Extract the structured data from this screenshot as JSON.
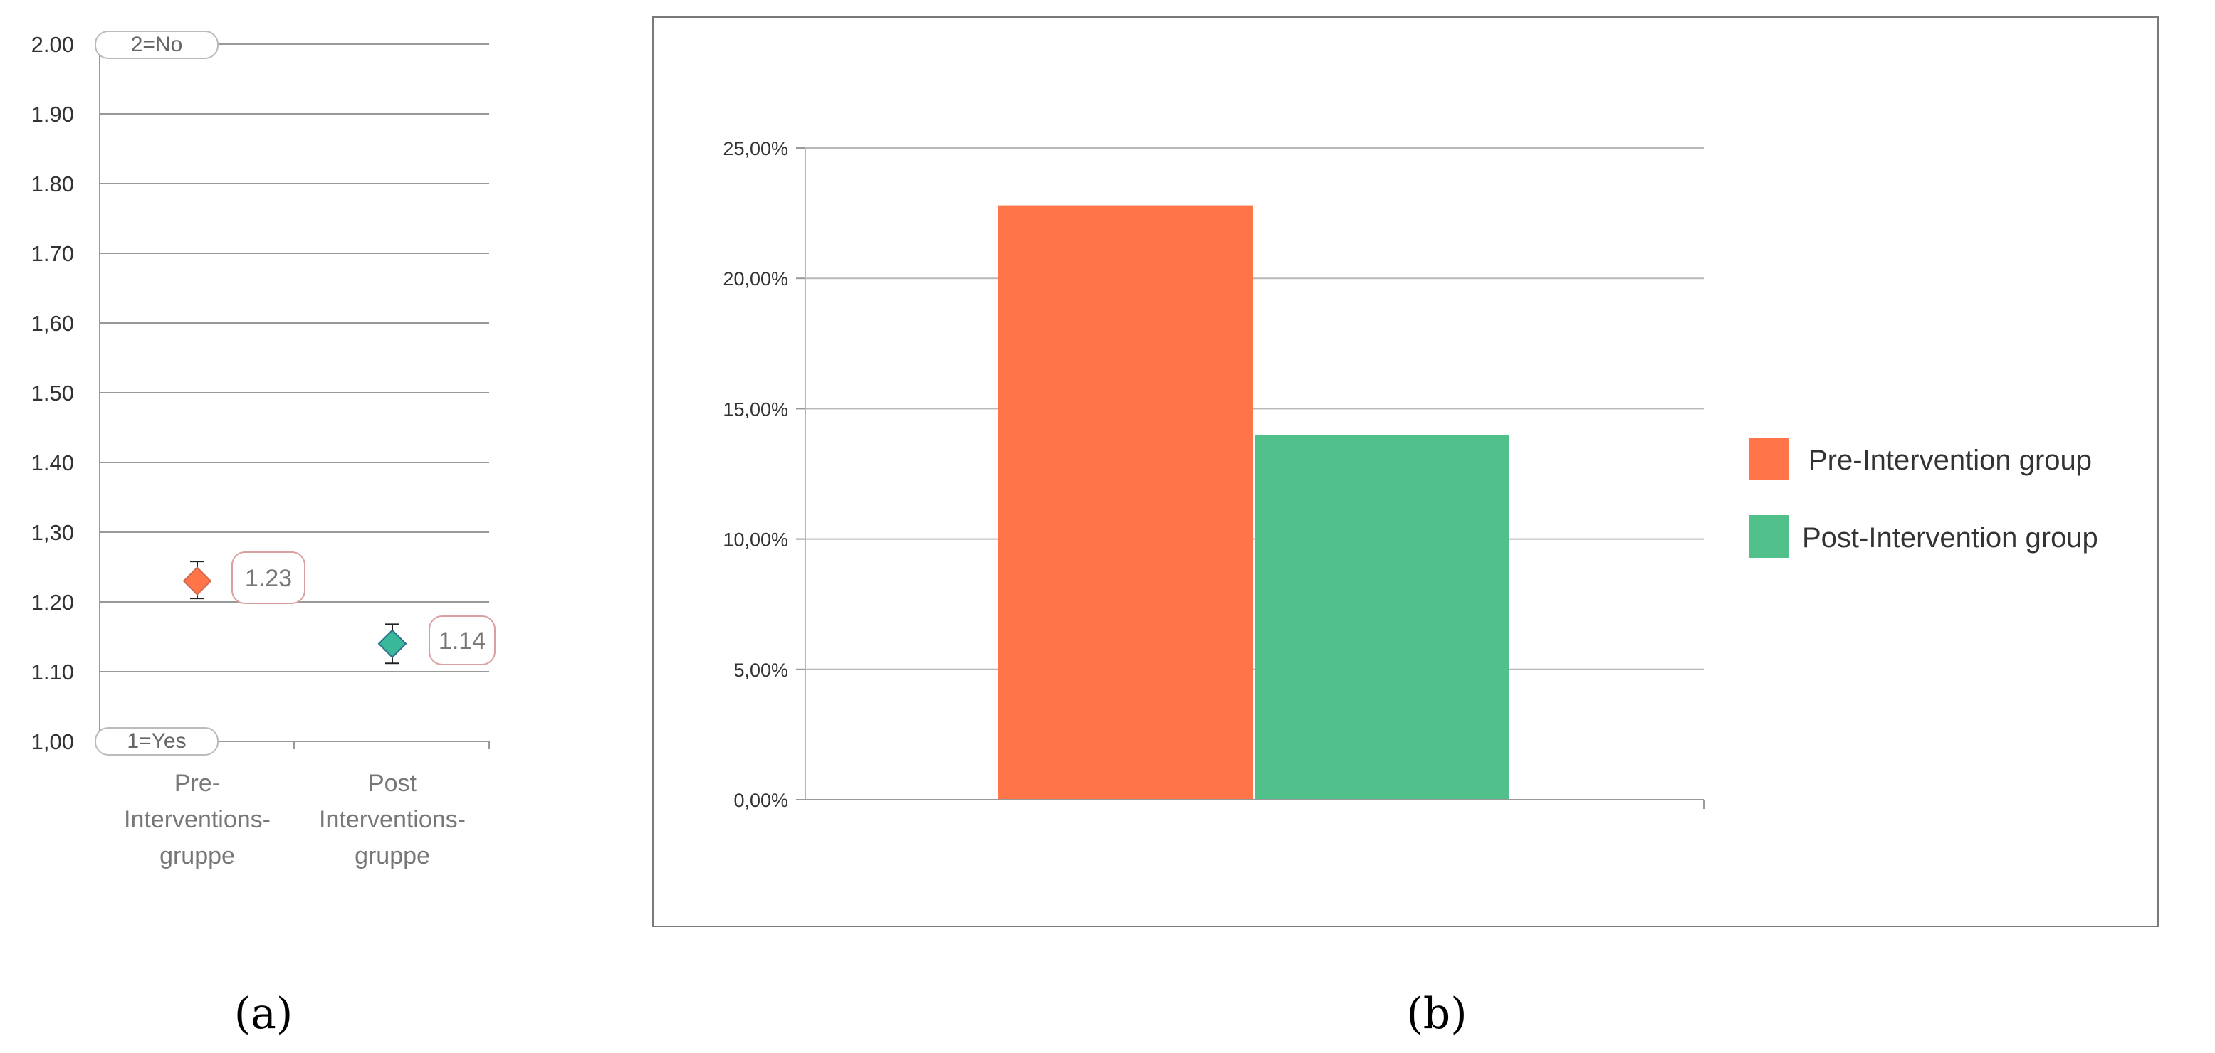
{
  "panel_a": {
    "panel_label": "(a)",
    "ytick_labels": [
      "2.00",
      "1.90",
      "1.80",
      "1.70",
      "1,60",
      "1.50",
      "1.40",
      "1,30",
      "1.20",
      "1.10",
      "1,00"
    ],
    "top_box_label": "2=No",
    "bottom_box_label": "1=Yes",
    "category_lines": [
      [
        "Pre-",
        "Interventions-",
        "gruppe"
      ],
      [
        "Post",
        "Interventions-",
        "gruppe"
      ]
    ],
    "value_labels": [
      "1.23",
      "1.14"
    ]
  },
  "panel_b": {
    "panel_label": "(b)",
    "ytick_labels": [
      "25,00%",
      "20,00%",
      "15,00%",
      "10,00%",
      "5,00%",
      "0,00%"
    ],
    "legend": [
      "Pre-Intervention group",
      "Post-Intervention group"
    ]
  },
  "colors": {
    "pre": "#ff7448",
    "post": "#52c08b",
    "marker_post": "#3ab89a",
    "grid": "#999999",
    "axis": "#999999",
    "frame": "#7a7a7a",
    "label_border": "#d9a0a0"
  },
  "chart_data": [
    {
      "type": "scatter",
      "categories": [
        "Pre-Interventions-gruppe",
        "Post Interventions-gruppe"
      ],
      "values": [
        1.23,
        1.14
      ],
      "error_bars": [
        [
          1.205,
          1.258
        ],
        [
          1.112,
          1.168
        ]
      ],
      "ylim": [
        1.0,
        2.0
      ],
      "ytick_step": 0.1,
      "grid": true,
      "title": "",
      "xlabel": "",
      "ylabel": ""
    },
    {
      "type": "bar",
      "series": [
        {
          "name": "Pre-Intervention group",
          "values": [
            0.228
          ]
        },
        {
          "name": "Post-Intervention group",
          "values": [
            0.14
          ]
        }
      ],
      "ylim": [
        0,
        0.25
      ],
      "ytick_step": 0.05,
      "grid": true,
      "legend_position": "right",
      "title": "",
      "xlabel": "",
      "ylabel": ""
    }
  ]
}
